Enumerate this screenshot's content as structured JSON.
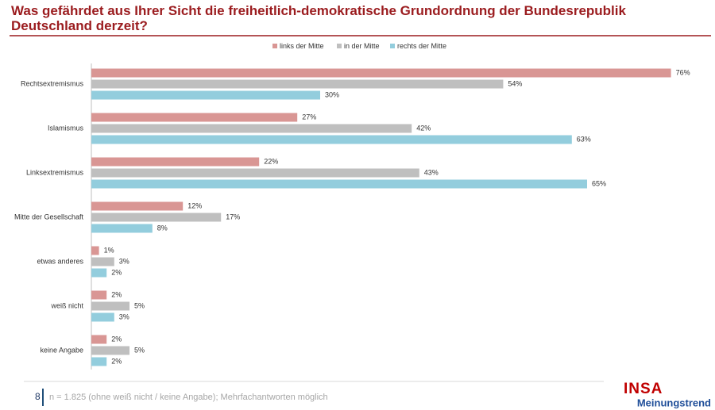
{
  "chart_data": {
    "type": "grouped-hbar",
    "title": "Was gefährdet aus Ihrer Sicht die freiheitlich-demokratische Grundordnung der Bundesrepublik Deutschland derzeit?",
    "categories": [
      "Rechtsextremismus",
      "Islamismus",
      "Linksextremismus",
      "Mitte der Gesellschaft",
      "etwas anderes",
      "weiß nicht",
      "keine Angabe"
    ],
    "series": [
      {
        "name": "links der Mitte",
        "color": "#d99694",
        "values": [
          76,
          27,
          22,
          12,
          1,
          2,
          2
        ],
        "value_labels": [
          "76%",
          "27%",
          "22%",
          "12%",
          "1%",
          "2%",
          "2%"
        ]
      },
      {
        "name": "in der Mitte",
        "color": "#bfbfbf",
        "values": [
          54,
          42,
          43,
          17,
          3,
          5,
          5
        ],
        "value_labels": [
          "54%",
          "42%",
          "43%",
          "17%",
          "3%",
          "5%",
          "5%"
        ]
      },
      {
        "name": "rechts der Mitte",
        "color": "#93cddd",
        "values": [
          30,
          63,
          65,
          8,
          2,
          3,
          2
        ],
        "value_labels": [
          "30%",
          "63%",
          "65%",
          "8%",
          "2%",
          "3%",
          "2%"
        ]
      }
    ],
    "legend": "top"
  },
  "slide": {
    "page_number": "8",
    "footnote": "n = 1.825 (ohne weiß nicht / keine Angabe); Mehrfachantworten möglich",
    "logo_top": "INSA",
    "logo_bottom": "Meinungstrend"
  }
}
